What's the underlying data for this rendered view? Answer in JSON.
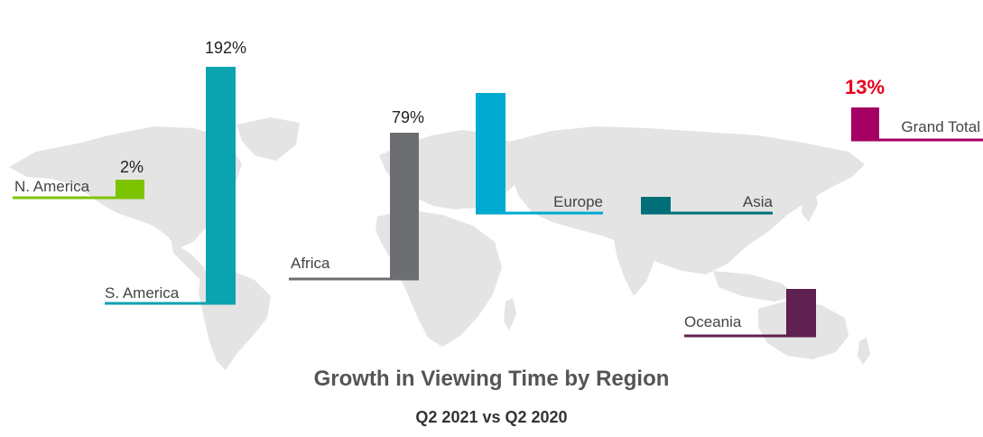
{
  "chart_data": {
    "type": "bar",
    "title": "Growth in Viewing Time by Region",
    "subtitle": "Q2 2021 vs Q2 2020",
    "categories": [
      "N. America",
      "S. America",
      "Africa",
      "Europe",
      "Asia",
      "Oceania",
      "Grand Total"
    ],
    "values": [
      2,
      192,
      79,
      null,
      null,
      null,
      13
    ],
    "value_labels": [
      "2%",
      "192%",
      "79%",
      "",
      "",
      "",
      "13%"
    ],
    "colors": [
      "#7dc400",
      "#0aa3b0",
      "#6d6e71",
      "#00aad0",
      "#006f7a",
      "#5e2150",
      "#a40064"
    ],
    "highlight_color": "#e8001c",
    "background": "world-map"
  }
}
